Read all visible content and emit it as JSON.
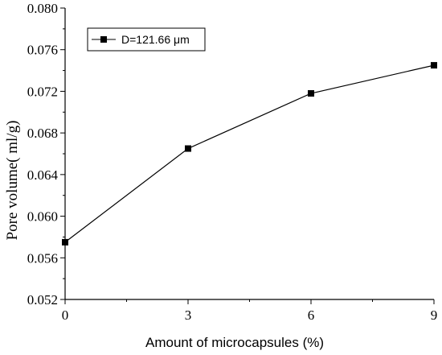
{
  "chart_data": {
    "type": "line",
    "title": "",
    "xlabel": "Amount of microcapsules (%)",
    "ylabel": "Pore volume(  ml/g)",
    "xlim": [
      0,
      9
    ],
    "ylim": [
      0.052,
      0.08
    ],
    "x_ticks": [
      "0",
      "3",
      "6",
      "9"
    ],
    "y_ticks": [
      "0.052",
      "0.056",
      "0.060",
      "0.064",
      "0.068",
      "0.072",
      "0.076",
      "0.080"
    ],
    "grid": false,
    "legend_position": "top-left",
    "series": [
      {
        "name": "D=121.66 μm",
        "x": [
          0,
          3,
          6,
          9
        ],
        "y": [
          0.0575,
          0.0665,
          0.0718,
          0.0745
        ],
        "color": "#000000",
        "marker": "square"
      }
    ]
  }
}
